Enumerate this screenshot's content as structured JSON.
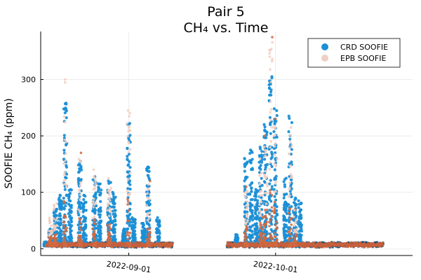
{
  "chart_data": {
    "type": "scatter",
    "title": "Pair 5",
    "subtitle": "CH₄ vs. Time",
    "xlabel": "",
    "ylabel": "SOOFIE CH₄ (ppm)",
    "x_range": [
      "2022-08-14",
      "2022-10-29"
    ],
    "ylim": [
      -12,
      385
    ],
    "yticks": [
      0,
      100,
      200,
      300
    ],
    "xticks": [
      {
        "date": "2022-09-01",
        "label": "2022-09-01"
      },
      {
        "date": "2022-10-01",
        "label": "2022-10-01"
      }
    ],
    "grid": true,
    "legend_position": "top-right",
    "series": [
      {
        "name": "CRD SOOFIE",
        "color": "#1b8fd6",
        "baseline": 5,
        "gaps": [
          [
            "2022-09-10",
            "2022-09-21"
          ]
        ],
        "spikes": [
          {
            "date": "2022-08-15",
            "peak": 12
          },
          {
            "date": "2022-08-16",
            "peak": 35
          },
          {
            "date": "2022-08-17",
            "peak": 70
          },
          {
            "date": "2022-08-18",
            "peak": 95
          },
          {
            "date": "2022-08-19",
            "peak": 258
          },
          {
            "date": "2022-08-20",
            "peak": 105
          },
          {
            "date": "2022-08-22",
            "peak": 155
          },
          {
            "date": "2022-08-23",
            "peak": 95
          },
          {
            "date": "2022-08-25",
            "peak": 128
          },
          {
            "date": "2022-08-26",
            "peak": 115
          },
          {
            "date": "2022-08-28",
            "peak": 120
          },
          {
            "date": "2022-08-29",
            "peak": 100
          },
          {
            "date": "2022-08-31",
            "peak": 35
          },
          {
            "date": "2022-09-01",
            "peak": 222
          },
          {
            "date": "2022-09-02",
            "peak": 55
          },
          {
            "date": "2022-09-04",
            "peak": 45
          },
          {
            "date": "2022-09-05",
            "peak": 145
          },
          {
            "date": "2022-09-07",
            "peak": 55
          },
          {
            "date": "2022-09-23",
            "peak": 25
          },
          {
            "date": "2022-09-25",
            "peak": 160
          },
          {
            "date": "2022-09-26",
            "peak": 175
          },
          {
            "date": "2022-09-27",
            "peak": 105
          },
          {
            "date": "2022-09-28",
            "peak": 180
          },
          {
            "date": "2022-09-29",
            "peak": 220
          },
          {
            "date": "2022-09-30",
            "peak": 305
          },
          {
            "date": "2022-10-01",
            "peak": 248
          },
          {
            "date": "2022-10-03",
            "peak": 125
          },
          {
            "date": "2022-10-04",
            "peak": 235
          },
          {
            "date": "2022-10-05",
            "peak": 90
          },
          {
            "date": "2022-10-06",
            "peak": 85
          }
        ]
      },
      {
        "name": "EPB SOOFIE",
        "color": "#e8a08a",
        "baseline": 5,
        "gaps": [
          [
            "2022-09-10",
            "2022-09-21"
          ]
        ],
        "spikes": [
          {
            "date": "2022-08-16",
            "peak": 55
          },
          {
            "date": "2022-08-17",
            "peak": 80
          },
          {
            "date": "2022-08-19",
            "peak": 300
          },
          {
            "date": "2022-08-22",
            "peak": 170
          },
          {
            "date": "2022-08-25",
            "peak": 140
          },
          {
            "date": "2022-08-28",
            "peak": 125
          },
          {
            "date": "2022-09-01",
            "peak": 245
          },
          {
            "date": "2022-09-05",
            "peak": 120
          },
          {
            "date": "2022-09-25",
            "peak": 110
          },
          {
            "date": "2022-09-28",
            "peak": 160
          },
          {
            "date": "2022-09-29",
            "peak": 200
          },
          {
            "date": "2022-09-30",
            "peak": 375
          },
          {
            "date": "2022-10-01",
            "peak": 230
          },
          {
            "date": "2022-10-04",
            "peak": 215
          },
          {
            "date": "2022-10-05",
            "peak": 70
          }
        ]
      }
    ]
  }
}
